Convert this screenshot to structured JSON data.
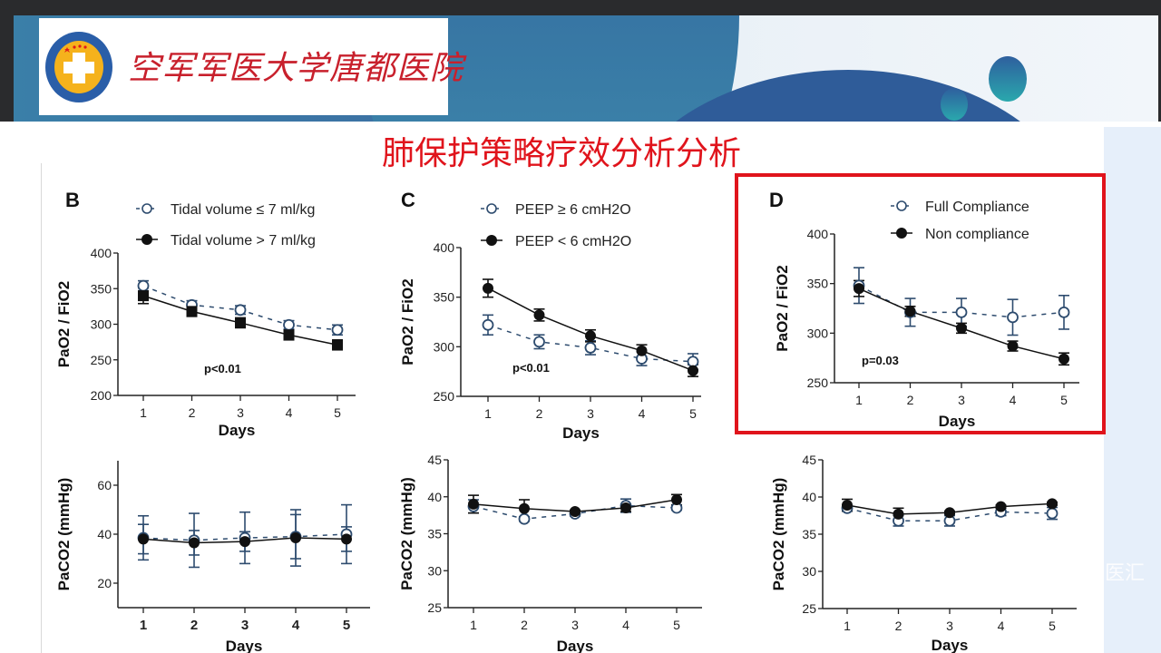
{
  "header": {
    "hospital_name": "空军军医大学唐都医院",
    "logo_text": "TANGDU HOSPITAL",
    "slide_title": "肺保护策略疗效分析分析",
    "watermark": "医汇"
  },
  "colors": {
    "title_red": "#e0141c",
    "open_series": "#2d4b6e",
    "filled_series": "#111111",
    "highlight_border": "#e0141c"
  },
  "chart_data": [
    {
      "id": "B-top",
      "type": "line",
      "panel": "B",
      "xlabel": "Days",
      "ylabel": "PaO2 / FiO2",
      "x": [
        1,
        2,
        3,
        4,
        5
      ],
      "xticks": [
        "1",
        "2",
        "3",
        "4",
        "5"
      ],
      "ylim": [
        200,
        400
      ],
      "yticks": [
        "200",
        "250",
        "300",
        "350",
        "400"
      ],
      "annotation": "p<0.01",
      "legend_position": "top",
      "series": [
        {
          "name": "Tidal volume ≤ 7 ml/kg",
          "style": "open-circle-dashed",
          "values": [
            354,
            327,
            320,
            299,
            292
          ],
          "err": [
            7,
            6,
            6,
            6,
            7
          ]
        },
        {
          "name": "Tidal volume > 7 ml/kg",
          "style": "filled-square-solid",
          "values": [
            340,
            318,
            302,
            285,
            271
          ],
          "err": [
            11,
            7,
            7,
            7,
            7
          ]
        }
      ]
    },
    {
      "id": "C-top",
      "type": "line",
      "panel": "C",
      "xlabel": "Days",
      "ylabel": "PaO2 / FiO2",
      "x": [
        1,
        2,
        3,
        4,
        5
      ],
      "xticks": [
        "1",
        "2",
        "3",
        "4",
        "5"
      ],
      "ylim": [
        250,
        400
      ],
      "yticks": [
        "250",
        "300",
        "350",
        "400"
      ],
      "annotation": "p<0.01",
      "legend_position": "top",
      "series": [
        {
          "name": "PEEP ≥ 6 cmH2O",
          "style": "open-circle-dashed",
          "values": [
            322,
            305,
            299,
            288,
            285
          ],
          "err": [
            10,
            7,
            7,
            7,
            8
          ]
        },
        {
          "name": "PEEP < 6 cmH2O",
          "style": "filled-circle-solid",
          "values": [
            359,
            332,
            311,
            296,
            276
          ],
          "err": [
            9,
            6,
            6,
            6,
            6
          ]
        }
      ]
    },
    {
      "id": "D-top",
      "type": "line",
      "panel": "D",
      "xlabel": "Days",
      "ylabel": "PaO2 / FiO2",
      "x": [
        1,
        2,
        3,
        4,
        5
      ],
      "xticks": [
        "1",
        "2",
        "3",
        "4",
        "5"
      ],
      "ylim": [
        250,
        400
      ],
      "yticks": [
        "250",
        "300",
        "350",
        "400"
      ],
      "annotation": "p=0.03",
      "legend_position": "top",
      "series": [
        {
          "name": "Full Compliance",
          "style": "open-circle-dashed",
          "values": [
            348,
            321,
            321,
            316,
            321
          ],
          "err": [
            18,
            14,
            14,
            18,
            17
          ]
        },
        {
          "name": "Non compliance",
          "style": "filled-circle-solid",
          "values": [
            345,
            322,
            305,
            287,
            274
          ],
          "err": [
            8,
            5,
            5,
            5,
            6
          ]
        }
      ]
    },
    {
      "id": "B-bottom",
      "type": "line",
      "panel": "",
      "xlabel": "Days",
      "ylabel": "PaCO2 (mmHg)",
      "x": [
        1,
        2,
        3,
        4,
        5
      ],
      "xticks": [
        "1",
        "2",
        "3",
        "4",
        "5"
      ],
      "ylim": [
        10,
        70
      ],
      "yticks": [
        "20",
        "40",
        "60"
      ],
      "annotation": "",
      "series": [
        {
          "name": "Tidal volume ≤ 7 ml/kg",
          "style": "open-circle-dashed",
          "values": [
            38.5,
            37.5,
            38.5,
            39,
            40
          ],
          "err": [
            9,
            11,
            10.5,
            9,
            12
          ]
        },
        {
          "name": "Tidal volume > 7 ml/kg",
          "style": "filled-circle-solid",
          "values": [
            38,
            36.5,
            37,
            38.5,
            38
          ],
          "err": [
            6,
            5,
            4,
            11.5,
            5
          ]
        }
      ]
    },
    {
      "id": "C-bottom",
      "type": "line",
      "panel": "",
      "xlabel": "Days",
      "ylabel": "PaCO2 (mmHg)",
      "x": [
        1,
        2,
        3,
        4,
        5
      ],
      "xticks": [
        "1",
        "2",
        "3",
        "4",
        "5"
      ],
      "ylim": [
        25,
        45
      ],
      "yticks": [
        "25",
        "30",
        "35",
        "40",
        "45"
      ],
      "annotation": "",
      "series": [
        {
          "name": "PEEP ≥ 6 cmH2O",
          "style": "open-circle-dashed",
          "values": [
            38.7,
            37.0,
            37.7,
            38.8,
            38.5
          ],
          "err": [
            0.9,
            0.3,
            0.3,
            0.9,
            0.3
          ]
        },
        {
          "name": "PEEP < 6 cmH2O",
          "style": "filled-circle-solid",
          "values": [
            39.0,
            38.4,
            38.0,
            38.5,
            39.6
          ],
          "err": [
            1.2,
            1.2,
            0.2,
            0.5,
            0.7
          ]
        }
      ]
    },
    {
      "id": "D-bottom",
      "type": "line",
      "panel": "",
      "xlabel": "Days",
      "ylabel": "PaCO2 (mmHg)",
      "x": [
        1,
        2,
        3,
        4,
        5
      ],
      "xticks": [
        "1",
        "2",
        "3",
        "4",
        "5"
      ],
      "ylim": [
        25,
        45
      ],
      "yticks": [
        "25",
        "30",
        "35",
        "40",
        "45"
      ],
      "annotation": "",
      "series": [
        {
          "name": "Full Compliance",
          "style": "open-circle-dashed",
          "values": [
            38.5,
            36.8,
            36.8,
            38.0,
            37.8
          ],
          "err": [
            0.4,
            0.7,
            0.7,
            0.5,
            0.8
          ]
        },
        {
          "name": "Non compliance",
          "style": "filled-circle-solid",
          "values": [
            38.9,
            37.7,
            37.9,
            38.7,
            39.1
          ],
          "err": [
            0.8,
            0.8,
            0.2,
            0.2,
            0.2
          ]
        }
      ]
    }
  ]
}
